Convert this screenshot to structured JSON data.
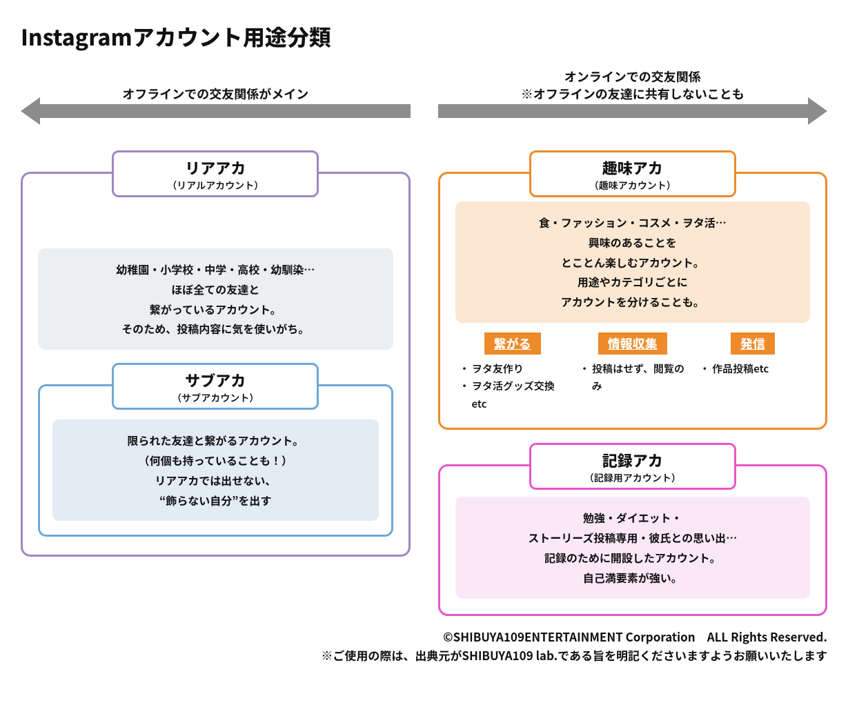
{
  "title": "Instagramアカウント用途分類",
  "axis": {
    "left_label": "オフラインでの交友関係がメイン",
    "right_label": "オンラインでの交友関係\n※オフラインの友達に共有しないことも",
    "arrow_color": "#8c8c8c"
  },
  "left": {
    "border_color": "#9d87c4",
    "tab_title": "リアアカ",
    "tab_sub": "（リアルアカウント）",
    "desc_bg": "#eceff2",
    "desc_text": "幼稚園・小学校・中学・高校・幼馴染…\nほぼ全ての友達と\n繋がっているアカウント。\nそのため、投稿内容に気を使いがち。",
    "sub": {
      "border_color": "#6fa7d6",
      "tab_title": "サブアカ",
      "tab_sub": "（サブアカウント）",
      "desc_bg": "#e3ebf5",
      "desc_text": "限られた友達と繋がるアカウント。\n（何個も持っていることも！）\nリアアカでは出せない、\n“飾らない自分”を出す"
    }
  },
  "right_top": {
    "border_color": "#ed8b2a",
    "tab_title": "趣味アカ",
    "tab_sub": "（趣味アカウント）",
    "desc_bg": "#fbe7d2",
    "desc_text": "食・ファッション・コスメ・ヲタ活…\n興味のあることを\nとことん楽しむアカウント。\n用途やカテゴリごとに\nアカウントを分けることも。",
    "tag_bg": "#ed8b2a",
    "cols": [
      {
        "tag": "繋がる",
        "items": [
          "ヲタ友作り",
          "ヲタ活グッズ交換　etc"
        ]
      },
      {
        "tag": "情報収集",
        "items": [
          "投稿はせず、閲覧のみ"
        ]
      },
      {
        "tag": "発信",
        "items": [
          "作品投稿etc"
        ]
      }
    ]
  },
  "right_bottom": {
    "border_color": "#ea56c8",
    "tab_title": "記録アカ",
    "tab_sub": "（記録用アカウント）",
    "desc_bg": "#fbe8f7",
    "desc_text": "勉強・ダイエット・\nストーリーズ投稿専用・彼氏との思い出…\n記録のために開設したアカウント。\n自己満要素が強い。"
  },
  "footer": {
    "line1": "©SHIBUYA109ENTERTAINMENT Corporation　ALL Rights Reserved.",
    "line2": "※ご使用の際は、出典元がSHIBUYA109 lab.である旨を明記くださいますようお願いいたします"
  }
}
